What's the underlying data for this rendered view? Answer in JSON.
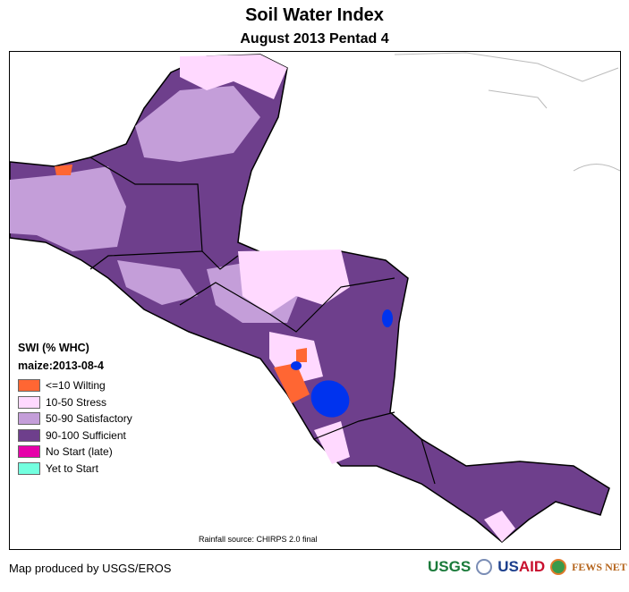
{
  "title": "Soil Water Index",
  "subtitle": "August 2013 Pentad 4",
  "legend": {
    "heading": "SWI (% WHC)",
    "subheading": "maize:2013-08-4",
    "items": [
      {
        "label": "<=10 Wilting",
        "color": "#ff6633"
      },
      {
        "label": "10-50 Stress",
        "color": "#ffd9ff"
      },
      {
        "label": "50-90 Satisfactory",
        "color": "#c49ed9"
      },
      {
        "label": "90-100 Sufficient",
        "color": "#6e3f8c"
      },
      {
        "label": "No Start (late)",
        "color": "#e600a9"
      },
      {
        "label": "Yet to Start",
        "color": "#73ffdf"
      }
    ]
  },
  "source": "Rainfall source: CHIRPS 2.0 final",
  "credit": "Map produced by USGS/EROS",
  "logos": {
    "usgs": "USGS",
    "usaid_us": "US",
    "usaid_aid": "AID",
    "fews": "FEWS NET"
  }
}
